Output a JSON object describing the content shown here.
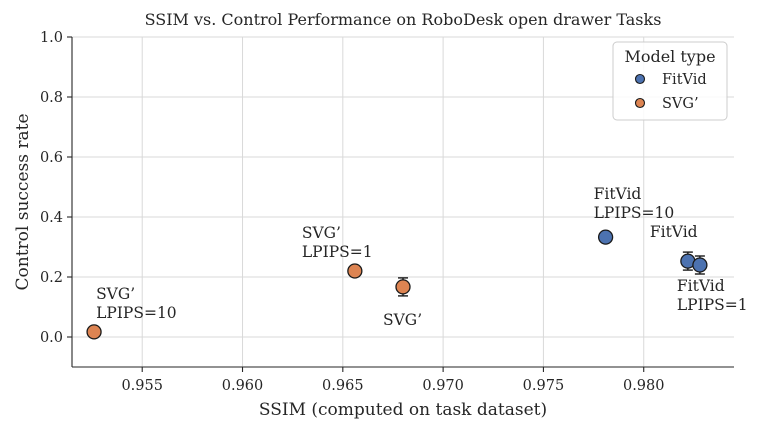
{
  "chart_data": {
    "type": "scatter",
    "title": "SSIM vs. Control Performance on RoboDesk open drawer Tasks",
    "xlabel": "SSIM (computed on task dataset)",
    "ylabel": "Control success rate",
    "xlim": [
      0.9515,
      0.9845
    ],
    "ylim": [
      -0.1,
      1.0
    ],
    "xticks": [
      0.955,
      0.96,
      0.965,
      0.97,
      0.975,
      0.98
    ],
    "xtick_labels": [
      "0.955",
      "0.960",
      "0.965",
      "0.970",
      "0.975",
      "0.980"
    ],
    "yticks": [
      0.0,
      0.2,
      0.4,
      0.6,
      0.8,
      1.0
    ],
    "ytick_labels": [
      "0.0",
      "0.2",
      "0.4",
      "0.6",
      "0.8",
      "1.0"
    ],
    "grid": true,
    "legend": {
      "title": "Model type",
      "placement": "top-right",
      "entries": [
        {
          "name": "FitVid",
          "color": "#4c72b0"
        },
        {
          "name": "SVG’",
          "color": "#dd8452"
        }
      ]
    },
    "series": [
      {
        "name": "FitVid",
        "color": "#4c72b0",
        "points": [
          {
            "x": 0.9781,
            "y": 0.333,
            "err": null,
            "label": [
              "FitVid",
              "LPIPS=10"
            ]
          },
          {
            "x": 0.9822,
            "y": 0.253,
            "err": 0.03,
            "label": [
              "FitVid"
            ]
          },
          {
            "x": 0.9828,
            "y": 0.24,
            "err": 0.03,
            "label": [
              "FitVid",
              "LPIPS=1"
            ]
          }
        ]
      },
      {
        "name": "SVG’",
        "color": "#dd8452",
        "points": [
          {
            "x": 0.9526,
            "y": 0.017,
            "err": null,
            "label": [
              "SVG’",
              "LPIPS=10"
            ]
          },
          {
            "x": 0.9656,
            "y": 0.22,
            "err": null,
            "label": [
              "SVG’",
              "LPIPS=1"
            ]
          },
          {
            "x": 0.968,
            "y": 0.167,
            "err": 0.03,
            "label": [
              "SVG’"
            ]
          }
        ]
      }
    ]
  }
}
